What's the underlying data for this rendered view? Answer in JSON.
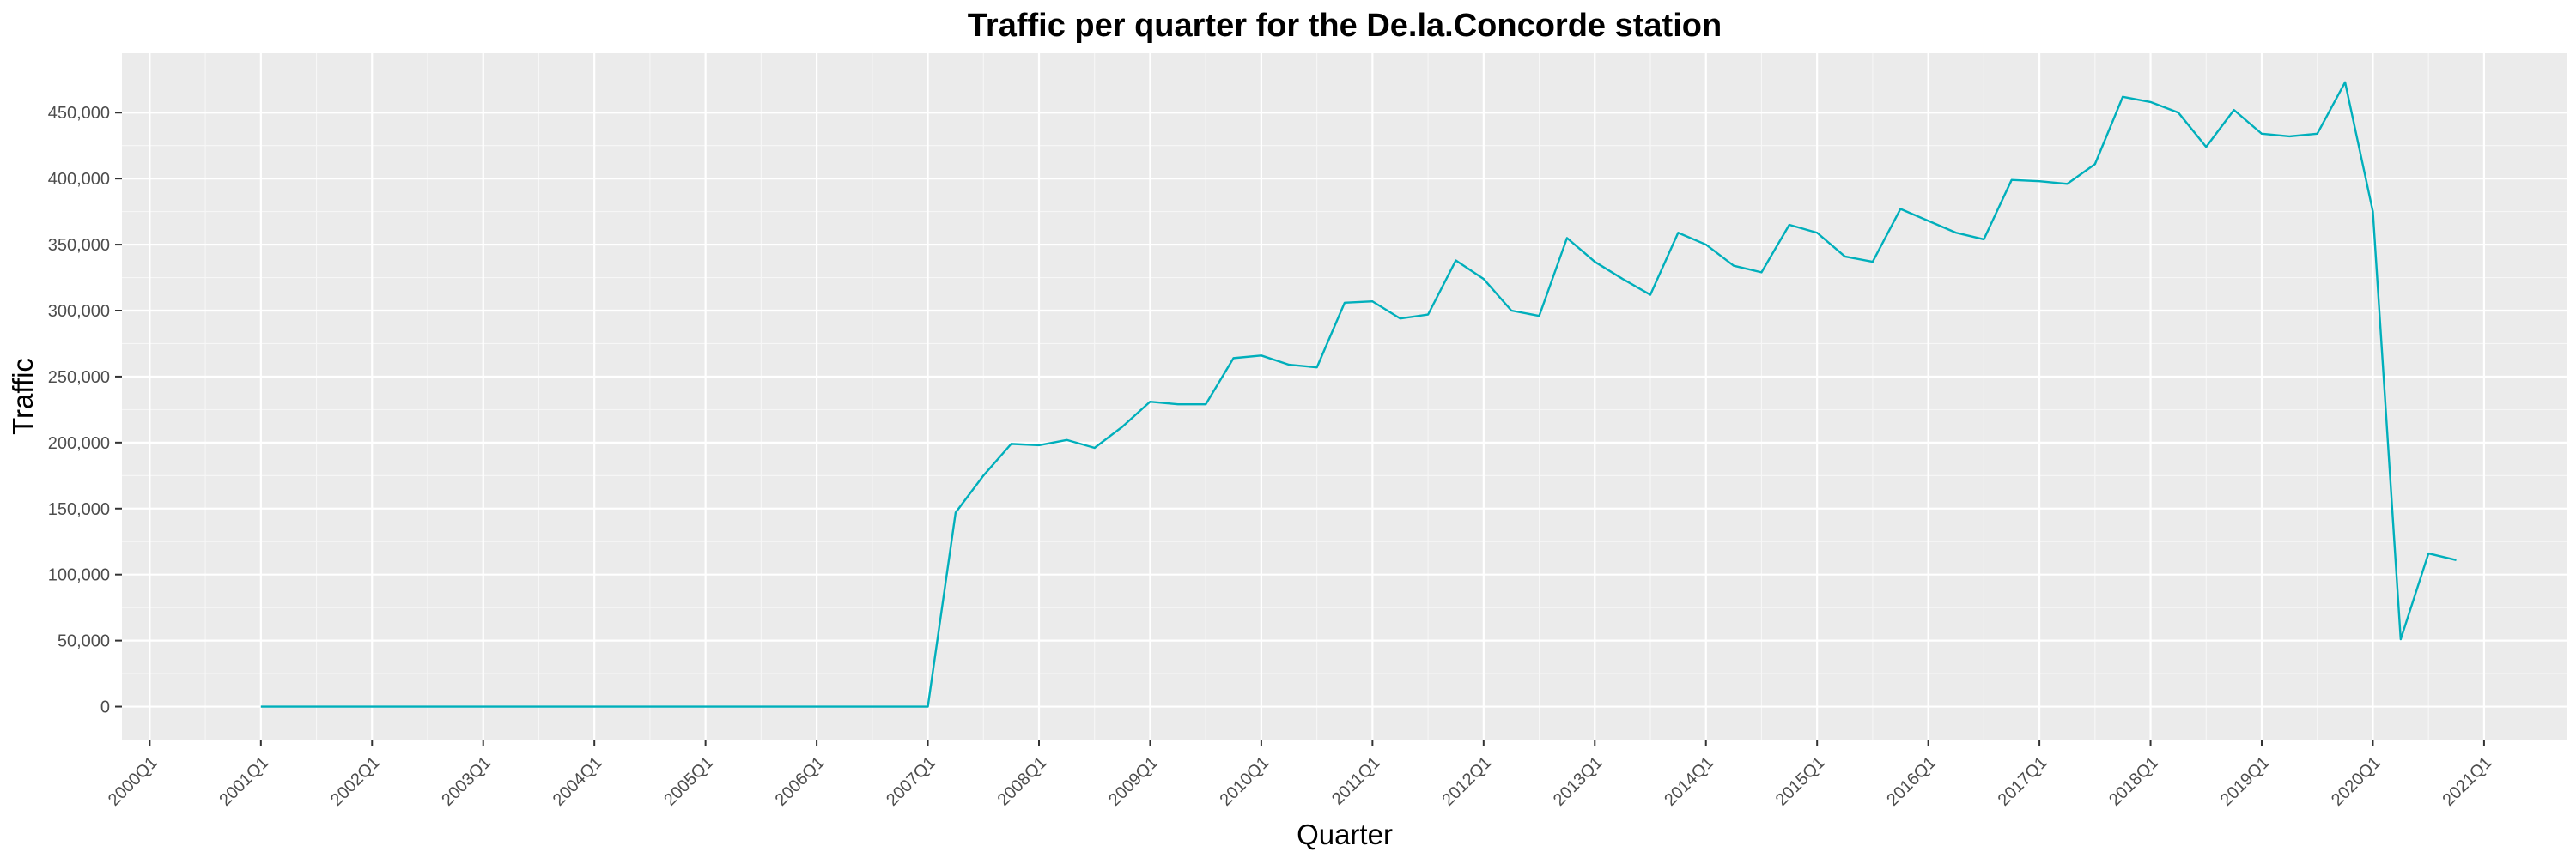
{
  "chart_data": {
    "type": "line",
    "title": "Traffic per quarter for the De.la.Concorde station",
    "xlabel": "Quarter",
    "ylabel": "Traffic",
    "x_tick_labels": [
      "2000Q1",
      "2001Q1",
      "2002Q1",
      "2003Q1",
      "2004Q1",
      "2005Q1",
      "2006Q1",
      "2007Q1",
      "2008Q1",
      "2009Q1",
      "2010Q1",
      "2011Q1",
      "2012Q1",
      "2013Q1",
      "2014Q1",
      "2015Q1",
      "2016Q1",
      "2017Q1",
      "2018Q1",
      "2019Q1",
      "2020Q1",
      "2021Q1"
    ],
    "y_tick_labels": [
      "0",
      "50,000",
      "100,000",
      "150,000",
      "200,000",
      "250,000",
      "300,000",
      "350,000",
      "400,000",
      "450,000"
    ],
    "y_ticks": [
      0,
      50000,
      100000,
      150000,
      200000,
      250000,
      300000,
      350000,
      400000,
      450000
    ],
    "ylim": [
      -25000,
      495000
    ],
    "xlim": [
      "1999Q4",
      "2021Q4"
    ],
    "grid": true,
    "legend": "none",
    "series": [
      {
        "color": "#00afbb",
        "x": [
          "2001Q1",
          "2001Q2",
          "2001Q3",
          "2001Q4",
          "2002Q1",
          "2002Q2",
          "2002Q3",
          "2002Q4",
          "2003Q1",
          "2003Q2",
          "2003Q3",
          "2003Q4",
          "2004Q1",
          "2004Q2",
          "2004Q3",
          "2004Q4",
          "2005Q1",
          "2005Q2",
          "2005Q3",
          "2005Q4",
          "2006Q1",
          "2006Q2",
          "2006Q3",
          "2006Q4",
          "2007Q1",
          "2007Q2",
          "2007Q3",
          "2007Q4",
          "2008Q1",
          "2008Q2",
          "2008Q3",
          "2008Q4",
          "2009Q1",
          "2009Q2",
          "2009Q3",
          "2009Q4",
          "2010Q1",
          "2010Q2",
          "2010Q3",
          "2010Q4",
          "2011Q1",
          "2011Q2",
          "2011Q3",
          "2011Q4",
          "2012Q1",
          "2012Q2",
          "2012Q3",
          "2012Q4",
          "2013Q1",
          "2013Q2",
          "2013Q3",
          "2013Q4",
          "2014Q1",
          "2014Q2",
          "2014Q3",
          "2014Q4",
          "2015Q1",
          "2015Q2",
          "2015Q3",
          "2015Q4",
          "2016Q1",
          "2016Q2",
          "2016Q3",
          "2016Q4",
          "2017Q1",
          "2017Q2",
          "2017Q3",
          "2017Q4",
          "2018Q1",
          "2018Q2",
          "2018Q3",
          "2018Q4",
          "2019Q1",
          "2019Q2",
          "2019Q3",
          "2019Q4",
          "2020Q1",
          "2020Q2",
          "2020Q3",
          "2020Q4"
        ],
        "values": [
          0,
          0,
          0,
          0,
          0,
          0,
          0,
          0,
          0,
          0,
          0,
          0,
          0,
          0,
          0,
          0,
          0,
          0,
          0,
          0,
          0,
          0,
          0,
          0,
          0,
          147000,
          175000,
          199000,
          198000,
          202000,
          196000,
          212000,
          231000,
          229000,
          229000,
          264000,
          266000,
          259000,
          257000,
          306000,
          307000,
          294000,
          297000,
          338000,
          324000,
          300000,
          296000,
          355000,
          337000,
          324000,
          312000,
          359000,
          350000,
          334000,
          329000,
          365000,
          359000,
          341000,
          337000,
          377000,
          368000,
          359000,
          354000,
          399000,
          398000,
          396000,
          411000,
          462000,
          458000,
          450000,
          424000,
          452000,
          434000,
          432000,
          434000,
          473000,
          375000,
          51000,
          116000,
          111000
        ]
      }
    ]
  }
}
